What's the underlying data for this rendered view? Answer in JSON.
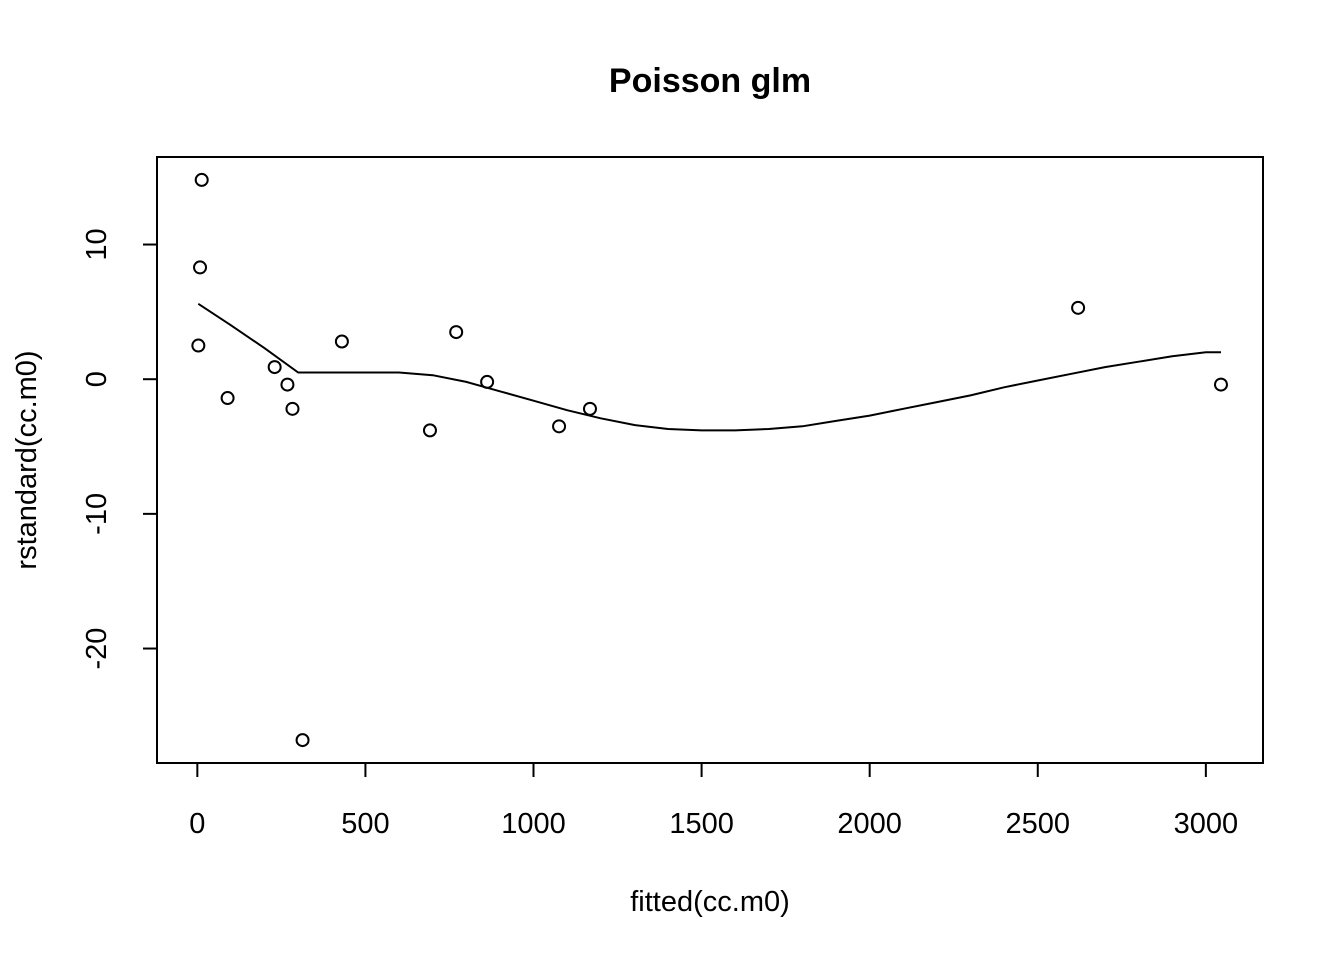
{
  "chart_data": {
    "type": "scatter",
    "title": "Poisson glm",
    "xlabel": "fitted(cc.m0)",
    "ylabel": "rstandard(cc.m0)",
    "xlim": [
      -120,
      3170
    ],
    "ylim": [
      -28.5,
      16.5
    ],
    "x_ticks": [
      0,
      500,
      1000,
      1500,
      2000,
      2500,
      3000
    ],
    "y_ticks": [
      -20,
      -10,
      0,
      10
    ],
    "grid": false,
    "legend": "none",
    "points": [
      {
        "x": 3,
        "y": 2.5
      },
      {
        "x": 8,
        "y": 8.3
      },
      {
        "x": 13,
        "y": 14.8
      },
      {
        "x": 90,
        "y": -1.4
      },
      {
        "x": 230,
        "y": 0.9
      },
      {
        "x": 268,
        "y": -0.4
      },
      {
        "x": 283,
        "y": -2.2
      },
      {
        "x": 313,
        "y": -26.8
      },
      {
        "x": 430,
        "y": 2.8
      },
      {
        "x": 692,
        "y": -3.8
      },
      {
        "x": 770,
        "y": 3.5
      },
      {
        "x": 862,
        "y": -0.2
      },
      {
        "x": 1076,
        "y": -3.5
      },
      {
        "x": 1168,
        "y": -2.2
      },
      {
        "x": 2620,
        "y": 5.3
      },
      {
        "x": 3045,
        "y": -0.4
      }
    ],
    "smooth": [
      {
        "x": 3,
        "y": 5.6
      },
      {
        "x": 100,
        "y": 4.0
      },
      {
        "x": 200,
        "y": 2.3
      },
      {
        "x": 300,
        "y": 0.5
      },
      {
        "x": 400,
        "y": 0.5
      },
      {
        "x": 600,
        "y": 0.5
      },
      {
        "x": 700,
        "y": 0.3
      },
      {
        "x": 800,
        "y": -0.2
      },
      {
        "x": 900,
        "y": -0.9
      },
      {
        "x": 1000,
        "y": -1.6
      },
      {
        "x": 1100,
        "y": -2.3
      },
      {
        "x": 1200,
        "y": -2.9
      },
      {
        "x": 1300,
        "y": -3.4
      },
      {
        "x": 1400,
        "y": -3.7
      },
      {
        "x": 1500,
        "y": -3.8
      },
      {
        "x": 1600,
        "y": -3.8
      },
      {
        "x": 1700,
        "y": -3.7
      },
      {
        "x": 1800,
        "y": -3.5
      },
      {
        "x": 1900,
        "y": -3.1
      },
      {
        "x": 2000,
        "y": -2.7
      },
      {
        "x": 2100,
        "y": -2.2
      },
      {
        "x": 2200,
        "y": -1.7
      },
      {
        "x": 2300,
        "y": -1.2
      },
      {
        "x": 2400,
        "y": -0.6
      },
      {
        "x": 2500,
        "y": -0.1
      },
      {
        "x": 2600,
        "y": 0.4
      },
      {
        "x": 2700,
        "y": 0.9
      },
      {
        "x": 2800,
        "y": 1.3
      },
      {
        "x": 2900,
        "y": 1.7
      },
      {
        "x": 3000,
        "y": 2.0
      },
      {
        "x": 3045,
        "y": 2.0
      }
    ],
    "colors": {
      "ink": "#000000",
      "background": "#ffffff"
    }
  }
}
